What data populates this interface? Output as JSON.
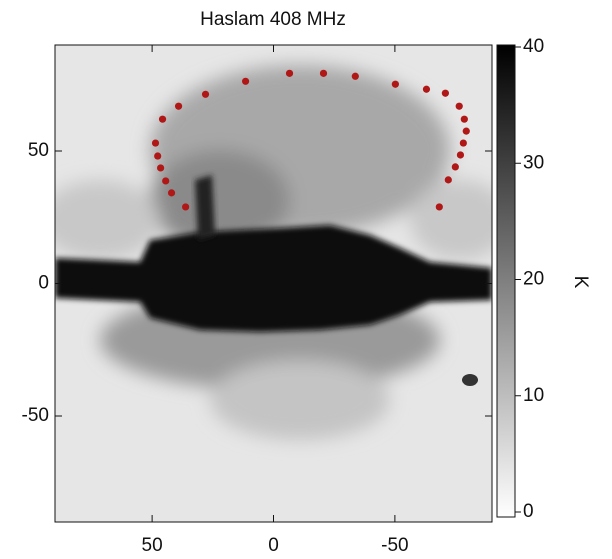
{
  "chart_data": {
    "type": "scatter",
    "title": "Haslam 408 MHz",
    "x": [
      36.2,
      42.0,
      44.4,
      46.5,
      47.7,
      48.6,
      45.7,
      39.1,
      28.0,
      11.5,
      -6.6,
      -20.6,
      -33.7,
      -50.2,
      -63.0,
      -70.8,
      -76.5,
      -78.6,
      -79.4,
      -78.2,
      -77.0,
      -74.9,
      -72.0,
      -68.3
    ],
    "values": [
      28.9,
      34.2,
      38.7,
      43.6,
      48.1,
      53.0,
      62.0,
      66.9,
      71.4,
      76.3,
      79.3,
      79.3,
      78.2,
      75.2,
      73.3,
      71.8,
      66.9,
      62.0,
      57.5,
      53.0,
      48.5,
      44.0,
      39.1,
      28.9
    ],
    "color": "#b01818",
    "xlim": [
      90,
      -90
    ],
    "xticks": [
      50,
      0,
      -50
    ],
    "ylim": [
      -90,
      90
    ],
    "yticks": [
      50,
      0,
      -50
    ],
    "colorbar": {
      "label": "K",
      "lim": [
        0,
        40
      ],
      "ticks": [
        0,
        10,
        20,
        30,
        40
      ]
    }
  }
}
